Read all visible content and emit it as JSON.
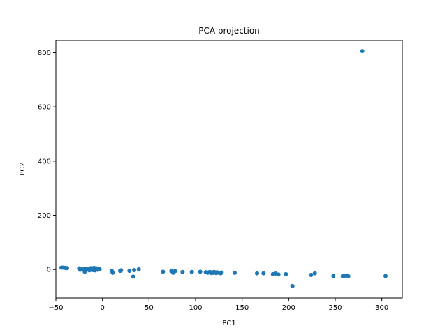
{
  "chart_data": {
    "type": "scatter",
    "title": "PCA projection",
    "xlabel": "PC1",
    "ylabel": "PC2",
    "xlim": [
      -50,
      322
    ],
    "ylim": [
      -105,
      845
    ],
    "xticks": [
      -50,
      0,
      50,
      100,
      150,
      200,
      250,
      300
    ],
    "yticks": [
      0,
      200,
      400,
      600,
      800
    ],
    "grid": false,
    "legend": "none",
    "point_color": "#1f77b4",
    "series": [
      {
        "x": [
          -44,
          -42,
          -40,
          -38,
          -25,
          -24,
          -23,
          -21,
          -20,
          -19,
          -18,
          -17,
          -16,
          -15,
          -14,
          -13,
          -12,
          -11,
          -10,
          -9,
          -8,
          -7,
          -6,
          -5,
          -4,
          -3,
          -12,
          -9,
          -6,
          -14,
          -8,
          -5,
          10,
          11,
          19,
          20,
          29,
          33,
          34,
          39,
          65,
          74,
          76,
          78,
          86,
          96,
          105,
          111,
          113,
          115,
          116,
          117,
          118,
          119,
          120,
          121,
          122,
          123,
          125,
          127,
          128,
          142,
          166,
          173,
          183,
          186,
          189,
          197,
          204,
          224,
          228,
          248,
          258,
          260,
          263,
          264,
          279,
          304
        ],
        "y": [
          7,
          7,
          6,
          5,
          4,
          -1,
          2,
          0,
          1,
          -8,
          -2,
          3,
          1,
          -1,
          2,
          4,
          0,
          3,
          -2,
          1,
          4,
          0,
          2,
          -1,
          3,
          1,
          5,
          6,
          4,
          -3,
          -3,
          0,
          -5,
          -12,
          -5,
          -3,
          -5,
          -26,
          -2,
          1,
          -8,
          -6,
          -12,
          -6,
          -9,
          -9,
          -8,
          -10,
          -12,
          -9,
          -11,
          -13,
          -10,
          -12,
          -9,
          -11,
          -13,
          -10,
          -12,
          -14,
          -11,
          -12,
          -14,
          -14,
          -17,
          -15,
          -18,
          -17,
          -61,
          -20,
          -14,
          -24,
          -25,
          -23,
          -22,
          -25,
          806,
          -24
        ]
      }
    ]
  }
}
